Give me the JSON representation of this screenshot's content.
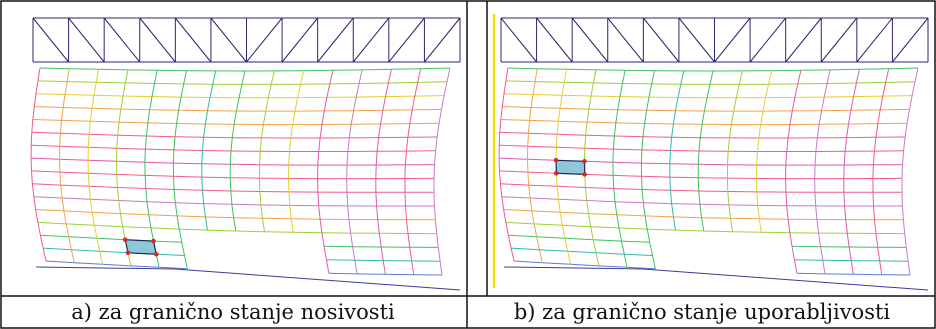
{
  "captions": {
    "left": "a) za granično stanje nosivosti",
    "right": "b) za granično stanje uporabljivosti"
  },
  "colors": {
    "truss": "#27276b",
    "border": "#111111",
    "highlight_fill": "#8ec7d6",
    "highlight_node": "#d8262b",
    "support_line": "#f2e600",
    "ground_line": "#3d3b8e",
    "mesh_palette": [
      "#f15a8c",
      "#e05ab0",
      "#c97ac8",
      "#f4a24a",
      "#e6cf2e",
      "#9ed13a",
      "#3fc060",
      "#2fb8b0",
      "#5a7ad8"
    ]
  },
  "panels": [
    {
      "name": "ultimate-limit-state",
      "highlight_cell": {
        "col": 3,
        "row": 13
      },
      "support_line": false
    },
    {
      "name": "serviceability-limit-state",
      "highlight_cell": {
        "col": 2,
        "row": 7
      },
      "support_line": true
    }
  ]
}
